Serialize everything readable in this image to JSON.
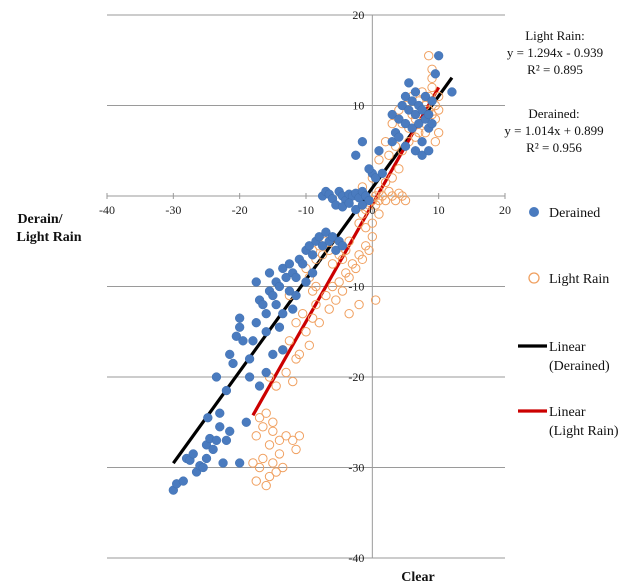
{
  "chart_data": {
    "type": "scatter",
    "xlabel": "Clear",
    "ylabel_lines": [
      "Derain/",
      "Light Rain"
    ],
    "xlim": [
      -40,
      20
    ],
    "ylim": [
      -40,
      20
    ],
    "x_ticks": [
      -40,
      -30,
      -20,
      -10,
      0,
      10,
      20
    ],
    "y_ticks": [
      20,
      10,
      -10,
      -20,
      -30,
      -40
    ],
    "grid": "horizontal",
    "colors": {
      "derained": "#4a7bbf",
      "light_rain": "#f0a060",
      "linear_derained": "#000000",
      "linear_light_rain": "#cc0000"
    },
    "series": [
      {
        "name": "Derained",
        "marker": "filled-circle",
        "points": [
          [
            -30,
            -32.5
          ],
          [
            -29.5,
            -31.8
          ],
          [
            -28.5,
            -31.5
          ],
          [
            -28,
            -29
          ],
          [
            -27.5,
            -29.2
          ],
          [
            -27,
            -28.5
          ],
          [
            -26.5,
            -30.5
          ],
          [
            -26,
            -29.8
          ],
          [
            -25.5,
            -30
          ],
          [
            -25,
            -29
          ],
          [
            -25,
            -27.5
          ],
          [
            -24.5,
            -26.8
          ],
          [
            -24,
            -28
          ],
          [
            -23.5,
            -27
          ],
          [
            -23,
            -25.5
          ],
          [
            -22.5,
            -29.5
          ],
          [
            -22,
            -27
          ],
          [
            -21.5,
            -26
          ],
          [
            -24.8,
            -24.5
          ],
          [
            -23,
            -24
          ],
          [
            -20,
            -29.5
          ],
          [
            -19,
            -25
          ],
          [
            -23.5,
            -20
          ],
          [
            -22,
            -21.5
          ],
          [
            -21.5,
            -17.5
          ],
          [
            -21,
            -18.5
          ],
          [
            -20.5,
            -15.5
          ],
          [
            -20,
            -13.5
          ],
          [
            -19.5,
            -16
          ],
          [
            -20,
            -14.5
          ],
          [
            -18.5,
            -18
          ],
          [
            -18,
            -16
          ],
          [
            -17.5,
            -14
          ],
          [
            -17,
            -11.5
          ],
          [
            -16.5,
            -12
          ],
          [
            -16,
            -13
          ],
          [
            -15.5,
            -10.5
          ],
          [
            -15,
            -11
          ],
          [
            -14.5,
            -9.5
          ],
          [
            -14,
            -10
          ],
          [
            -13.5,
            -8
          ],
          [
            -13,
            -9
          ],
          [
            -12.5,
            -7.5
          ],
          [
            -12,
            -8.5
          ],
          [
            -11.5,
            -9
          ],
          [
            -11,
            -7
          ],
          [
            -10.5,
            -7.5
          ],
          [
            -10,
            -6
          ],
          [
            -9.5,
            -5.5
          ],
          [
            -9,
            -6.5
          ],
          [
            -8.5,
            -5
          ],
          [
            -8,
            -4.5
          ],
          [
            -7.5,
            -5.5
          ],
          [
            -7,
            -4
          ],
          [
            -6.5,
            -5
          ],
          [
            -6,
            -4.5
          ],
          [
            -5.5,
            -6
          ],
          [
            -5,
            -5
          ],
          [
            -4.5,
            -5.5
          ],
          [
            -17.5,
            -9.5
          ],
          [
            -15.5,
            -8.5
          ],
          [
            -14.5,
            -12
          ],
          [
            -12.5,
            -10.5
          ],
          [
            -11.5,
            -11
          ],
          [
            -13.5,
            -13
          ],
          [
            -16,
            -15
          ],
          [
            -14,
            -14.5
          ],
          [
            -12,
            -12.5
          ],
          [
            -10,
            -9.5
          ],
          [
            -9,
            -8.5
          ],
          [
            -17,
            -21
          ],
          [
            -16,
            -19.5
          ],
          [
            -15,
            -17.5
          ],
          [
            -13.5,
            -17
          ],
          [
            -18.5,
            -20
          ],
          [
            -7.5,
            0
          ],
          [
            -7,
            0.5
          ],
          [
            -6.5,
            0.2
          ],
          [
            -6,
            -0.3
          ],
          [
            -5,
            0.5
          ],
          [
            -4.5,
            0
          ],
          [
            -4,
            -0.5
          ],
          [
            -3.5,
            0.2
          ],
          [
            -3,
            0
          ],
          [
            -2.5,
            0.3
          ],
          [
            -2,
            -0.2
          ],
          [
            -1.5,
            0.5
          ],
          [
            -1,
            0
          ],
          [
            -0.5,
            -0.5
          ],
          [
            -5.5,
            -1
          ],
          [
            -4.5,
            -1.2
          ],
          [
            -3.5,
            -0.8
          ],
          [
            -2.5,
            -1.5
          ],
          [
            -1.5,
            -1
          ],
          [
            -2.5,
            4.5
          ],
          [
            -1.5,
            6
          ],
          [
            0,
            2.5
          ],
          [
            -0.5,
            3
          ],
          [
            0.5,
            2
          ],
          [
            1,
            5
          ],
          [
            1.5,
            2.5
          ],
          [
            3,
            9
          ],
          [
            3.5,
            7
          ],
          [
            4,
            8.5
          ],
          [
            4.5,
            10
          ],
          [
            5,
            11
          ],
          [
            5,
            8
          ],
          [
            5.5,
            9.5
          ],
          [
            5.5,
            12.5
          ],
          [
            6,
            10.5
          ],
          [
            6,
            7.5
          ],
          [
            6.5,
            9
          ],
          [
            6.5,
            11.5
          ],
          [
            7,
            8
          ],
          [
            7,
            10
          ],
          [
            7.5,
            9.5
          ],
          [
            7.5,
            6
          ],
          [
            8,
            8.5
          ],
          [
            8,
            11
          ],
          [
            8.5,
            7.5
          ],
          [
            8.5,
            9
          ],
          [
            9,
            10.5
          ],
          [
            9,
            8
          ],
          [
            9.5,
            13.5
          ],
          [
            10,
            15.5
          ],
          [
            12,
            11.5
          ],
          [
            3,
            6
          ],
          [
            4,
            6.5
          ],
          [
            5,
            5.5
          ],
          [
            6.5,
            5
          ],
          [
            7.5,
            4.5
          ],
          [
            8.5,
            5
          ]
        ]
      },
      {
        "name": "Light Rain",
        "marker": "open-circle",
        "points": [
          [
            -18,
            -29.5
          ],
          [
            -17.5,
            -31.5
          ],
          [
            -17,
            -30
          ],
          [
            -16.5,
            -29
          ],
          [
            -16,
            -32
          ],
          [
            -15.5,
            -31
          ],
          [
            -15,
            -29.5
          ],
          [
            -14.5,
            -30.5
          ],
          [
            -14,
            -28.5
          ],
          [
            -13.5,
            -30
          ],
          [
            -17.5,
            -26.5
          ],
          [
            -15.5,
            -27.5
          ],
          [
            -15,
            -26
          ],
          [
            -14,
            -27
          ],
          [
            -13,
            -26.5
          ],
          [
            -12,
            -27
          ],
          [
            -11,
            -26.5
          ],
          [
            -11.5,
            -28
          ],
          [
            -15,
            -25
          ],
          [
            -16,
            -24
          ],
          [
            -16.5,
            -25.5
          ],
          [
            -17,
            -24.5
          ],
          [
            -15.5,
            -20
          ],
          [
            -14.5,
            -21
          ],
          [
            -13,
            -19.5
          ],
          [
            -12,
            -20.5
          ],
          [
            -11.5,
            -18
          ],
          [
            -13.5,
            -17
          ],
          [
            -12.5,
            -16
          ],
          [
            -11,
            -17.5
          ],
          [
            -10,
            -15
          ],
          [
            -9.5,
            -16.5
          ],
          [
            -11.5,
            -14
          ],
          [
            -10.5,
            -13
          ],
          [
            -9,
            -13.5
          ],
          [
            -8.5,
            -12
          ],
          [
            -8,
            -14
          ],
          [
            -7,
            -11
          ],
          [
            -6.5,
            -12.5
          ],
          [
            -6,
            -10
          ],
          [
            -5.5,
            -11.5
          ],
          [
            -5,
            -9.5
          ],
          [
            -4.5,
            -10.5
          ],
          [
            -4,
            -8.5
          ],
          [
            -3.5,
            -9
          ],
          [
            -3,
            -7.5
          ],
          [
            -2.5,
            -8
          ],
          [
            -2,
            -6.5
          ],
          [
            -1.5,
            -7
          ],
          [
            -1,
            -5.5
          ],
          [
            -0.5,
            -6
          ],
          [
            0,
            -4.5
          ],
          [
            0.5,
            -11.5
          ],
          [
            -2,
            -12
          ],
          [
            -3.5,
            -13
          ],
          [
            -9,
            -6
          ],
          [
            -8.5,
            -7
          ],
          [
            -8,
            -5.5
          ],
          [
            -7.5,
            -6.5
          ],
          [
            -7,
            -5
          ],
          [
            -6.5,
            -6
          ],
          [
            -6,
            -7.5
          ],
          [
            -5.5,
            -5.5
          ],
          [
            -5,
            -6.5
          ],
          [
            -4.5,
            -7
          ],
          [
            -4,
            -6
          ],
          [
            -3.5,
            -5
          ],
          [
            -10,
            -8
          ],
          [
            -9.5,
            -9
          ],
          [
            -9,
            -10.5
          ],
          [
            -8.5,
            -10
          ],
          [
            -12.5,
            -11
          ],
          [
            -2,
            -3
          ],
          [
            -1.5,
            -2
          ],
          [
            -1,
            -1.5
          ],
          [
            -0.5,
            -1
          ],
          [
            0,
            -0.5
          ],
          [
            0.5,
            -1
          ],
          [
            1,
            -0.5
          ],
          [
            1.5,
            0
          ],
          [
            2,
            -0.5
          ],
          [
            2.5,
            0.5
          ],
          [
            3,
            0
          ],
          [
            3.5,
            -0.5
          ],
          [
            4,
            0.3
          ],
          [
            4.5,
            0
          ],
          [
            5,
            -0.5
          ],
          [
            1,
            0.5
          ],
          [
            0.5,
            0
          ],
          [
            -1,
            -3.5
          ],
          [
            0,
            -3
          ],
          [
            1,
            -2
          ],
          [
            -1.5,
            1
          ],
          [
            0,
            2
          ],
          [
            2,
            1.5
          ],
          [
            3,
            2
          ],
          [
            4,
            3
          ],
          [
            1,
            4
          ],
          [
            2,
            6
          ],
          [
            3,
            8
          ],
          [
            4,
            9.5
          ],
          [
            4.5,
            8
          ],
          [
            5,
            10
          ],
          [
            5.5,
            7.5
          ],
          [
            6,
            9
          ],
          [
            6,
            11
          ],
          [
            6.5,
            8.5
          ],
          [
            7,
            10.5
          ],
          [
            7,
            7
          ],
          [
            7.5,
            9
          ],
          [
            7.5,
            11.5
          ],
          [
            8,
            8
          ],
          [
            8,
            10
          ],
          [
            8.5,
            9.5
          ],
          [
            8.5,
            11
          ],
          [
            9,
            9
          ],
          [
            9,
            12
          ],
          [
            9.5,
            10
          ],
          [
            9.5,
            8.5
          ],
          [
            10,
            11
          ],
          [
            10,
            9.5
          ],
          [
            9,
            13
          ],
          [
            8.5,
            15.5
          ],
          [
            9,
            14
          ],
          [
            8,
            7
          ],
          [
            6.5,
            6.5
          ],
          [
            5.5,
            6
          ],
          [
            4.5,
            5
          ],
          [
            3.5,
            5.5
          ],
          [
            2.5,
            4.5
          ],
          [
            10,
            7
          ],
          [
            9.5,
            6
          ]
        ]
      }
    ],
    "trendlines": [
      {
        "name": "Linear (Derained)",
        "x_range": [
          -30,
          12
        ],
        "equation": "y = 1.014x + 0.899",
        "r2": "R² = 0.956"
      },
      {
        "name": "Linear (Light Rain)",
        "x_range": [
          -18,
          10
        ],
        "equation": "y = 1.294x - 0.939",
        "r2": "R² = 0.895"
      }
    ],
    "annotations": {
      "light_rain_title": "Light  Rain:",
      "light_rain_eq": "y = 1.294x - 0.939",
      "light_rain_r2": "R² = 0.895",
      "derained_title": "Derained:",
      "derained_eq": "y = 1.014x + 0.899",
      "derained_r2": "R² = 0.956"
    },
    "legend": {
      "placement": "right",
      "entries": [
        {
          "label_lines": [
            "Derained"
          ]
        },
        {
          "label_lines": [
            "Light Rain"
          ]
        },
        {
          "label_lines": [
            "Linear",
            "(Derained)"
          ]
        },
        {
          "label_lines": [
            "Linear",
            "(Light Rain)"
          ]
        }
      ]
    }
  }
}
